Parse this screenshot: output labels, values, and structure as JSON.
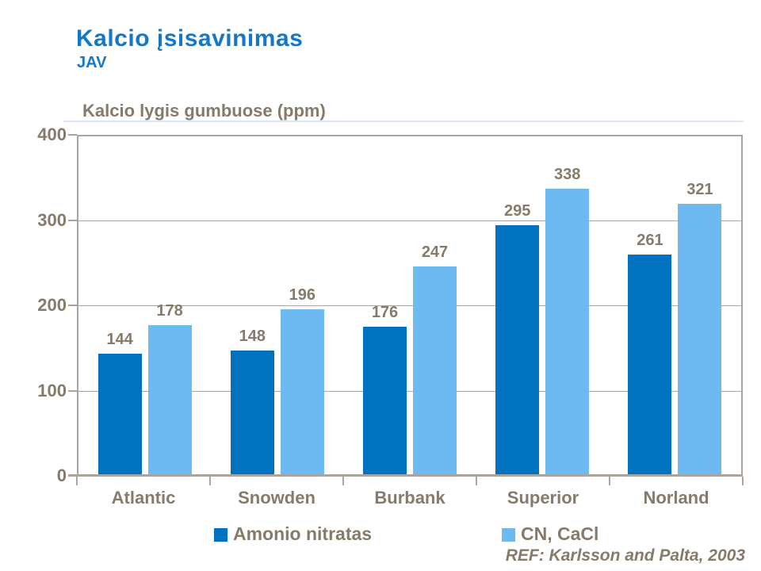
{
  "header": {
    "title": "Kalcio įsisavinimas",
    "subtitle": "JAV"
  },
  "chart_title": "Kalcio lygis gumbuose (ppm)",
  "footer": {
    "ref": "REF: Karlsson and Palta, 2003"
  },
  "colors": {
    "title_blue": "#1577C8",
    "series1": "#0072C0",
    "series2": "#6DBAF3",
    "label_gray": "#877A6A",
    "axis_gray": "#ABA49C",
    "gridline_gray": "#A5A5A5"
  },
  "chart_data": {
    "type": "bar",
    "title": "Kalcio lygis gumbuose (ppm)",
    "categories": [
      "Atlantic",
      "Snowden",
      "Burbank",
      "Superior",
      "Norland"
    ],
    "series": [
      {
        "name": "Amonio nitratas",
        "color_key": "series1",
        "values": [
          144,
          148,
          176,
          295,
          261
        ]
      },
      {
        "name": "CN, CaCl",
        "color_key": "series2",
        "values": [
          178,
          196,
          247,
          338,
          321
        ]
      }
    ],
    "xlabel": "",
    "ylabel": "Kalcio lygis gumbuose (ppm)",
    "ylim": [
      0,
      400
    ],
    "y_ticks": [
      0,
      100,
      200,
      300,
      400
    ],
    "grid": true,
    "data_labels": true,
    "legend_position": "bottom"
  }
}
